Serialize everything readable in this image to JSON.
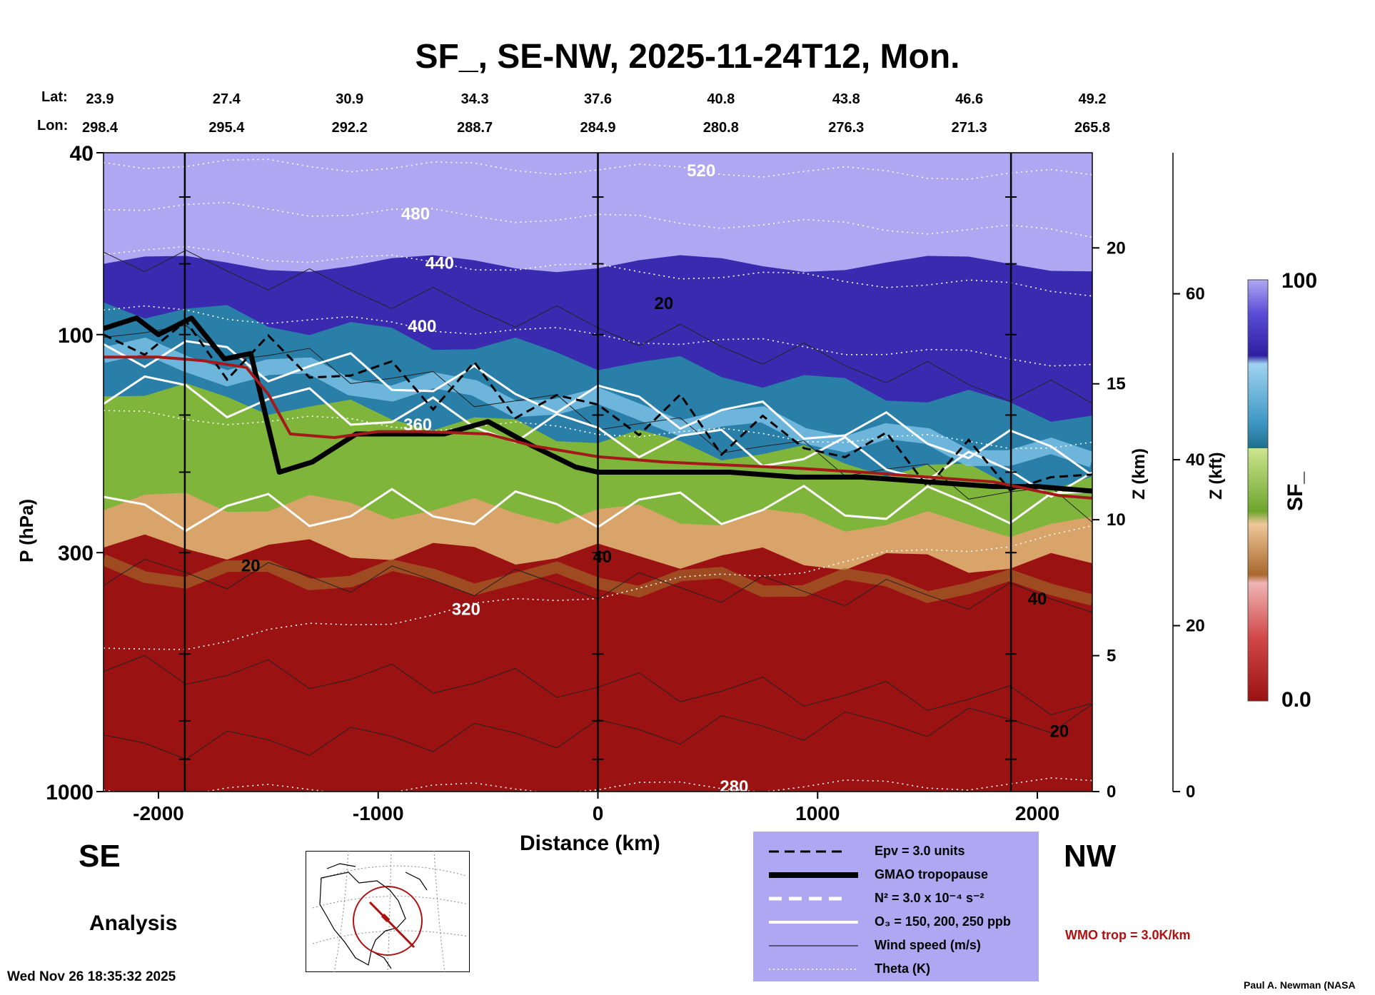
{
  "chart_data": {
    "type": "heatmap",
    "title": "SF_, SE-NW, 2025-11-24T12, Mon.",
    "xlabel": "Distance (km)",
    "ylabel": "P (hPa)",
    "y2label": "Z (km)",
    "y3label": "Z (kft)",
    "colorbar_label": "SF_",
    "xlim": [
      -2250,
      2250
    ],
    "ylim": [
      1000,
      40
    ],
    "x_ticks": [
      -2000,
      -1000,
      0,
      1000,
      2000
    ],
    "x_tick_labels": [
      "-2000",
      "-1000",
      "0",
      "1000",
      "2000"
    ],
    "y_ticks": [
      40,
      100,
      300,
      1000
    ],
    "y_tick_labels": [
      "40",
      "100",
      "300",
      "1000"
    ],
    "z_km_ticks": [
      0,
      5,
      10,
      15,
      20
    ],
    "z_km_tick_labels": [
      "0",
      "5",
      "10",
      "15",
      "20"
    ],
    "z_kft_ticks": [
      0,
      20,
      40,
      60
    ],
    "z_kft_tick_labels": [
      "0",
      "20",
      "40",
      "60"
    ],
    "colorbar_range": [
      0.0,
      100
    ],
    "colorbar_labels": [
      "100",
      "0.0"
    ],
    "lat_label": "Lat:",
    "lon_label": "Lon:",
    "lat_values": [
      "23.9",
      "27.4",
      "30.9",
      "34.3",
      "37.6",
      "40.8",
      "43.8",
      "46.6",
      "49.2"
    ],
    "lon_values": [
      "298.4",
      "295.4",
      "292.2",
      "288.7",
      "284.9",
      "280.8",
      "276.3",
      "271.3",
      "265.8"
    ],
    "station_distances": [
      -2250,
      -1690,
      -1130,
      -560,
      0,
      560,
      1130,
      1690,
      2250
    ],
    "vertical_lines_km": [
      -1880,
      0,
      1880
    ],
    "theta_levels": [
      "520",
      "480",
      "440",
      "400",
      "360",
      "320",
      "280"
    ],
    "wind_levels": [
      "20",
      "40"
    ],
    "tropopause_series": [
      {
        "name": "GMAO tropopause",
        "x": [
          -2250,
          -2100,
          -2000,
          -1850,
          -1700,
          -1580,
          -1450,
          -1300,
          -1100,
          -900,
          -700,
          -500,
          -300,
          -100,
          0,
          300,
          600,
          900,
          1200,
          1500,
          1800,
          2000,
          2250
        ],
        "p": [
          97,
          92,
          100,
          92,
          113,
          110,
          200,
          190,
          165,
          165,
          165,
          155,
          175,
          195,
          200,
          200,
          200,
          205,
          205,
          210,
          215,
          215,
          220
        ]
      },
      {
        "name": "WMO trop",
        "x": [
          -2250,
          -2000,
          -1800,
          -1600,
          -1500,
          -1400,
          -1200,
          -1000,
          -800,
          -500,
          -300,
          0,
          300,
          600,
          900,
          1200,
          1500,
          1800,
          2100,
          2250
        ],
        "p": [
          112,
          112,
          114,
          118,
          135,
          165,
          168,
          163,
          163,
          165,
          175,
          185,
          190,
          193,
          196,
          200,
          205,
          210,
          225,
          228
        ]
      }
    ],
    "layers": [
      {
        "name": "SF 100 (stratosphere top)",
        "p_bottom_se": 85,
        "p_bottom_nw": 150
      },
      {
        "name": "SF mid (blue)",
        "p_bottom_se": 130,
        "p_bottom_nw": 215
      },
      {
        "name": "SF transition (green)",
        "p_bottom_se": 230,
        "p_bottom_nw": 265
      },
      {
        "name": "SF low (tan)",
        "p_bottom_se": 290,
        "p_bottom_nw": 320
      },
      {
        "name": "SF 0.0 (troposphere)",
        "p_bottom_se": 1000,
        "p_bottom_nw": 1000
      }
    ]
  },
  "labels": {
    "se": "SE",
    "nw": "NW",
    "analysis": "Analysis",
    "timestamp": "Wed Nov 26 18:35:32 2025",
    "credit": "Paul A. Newman (NASA",
    "wmo_trop": "WMO trop = 3.0K/km"
  },
  "legend": {
    "items": [
      {
        "label": "Epv = 3.0 units"
      },
      {
        "label": "GMAO tropopause"
      },
      {
        "label": "N² = 3.0 x 10⁻⁴ s⁻²"
      },
      {
        "label": "O₃ = 150, 200, 250 ppb"
      },
      {
        "label": "Wind speed (m/s)"
      },
      {
        "label": "Theta (K)"
      }
    ]
  },
  "colors": {
    "upper": "#b0a7f3",
    "dark_blue": "#3a2ab0",
    "light_blue": "#7ec3e6",
    "teal": "#2a7fa8",
    "green": "#7fb53a",
    "tan": "#d9a46a",
    "brown": "#a0642a",
    "red": "#9b1212",
    "trop_red": "#a41a1a"
  }
}
